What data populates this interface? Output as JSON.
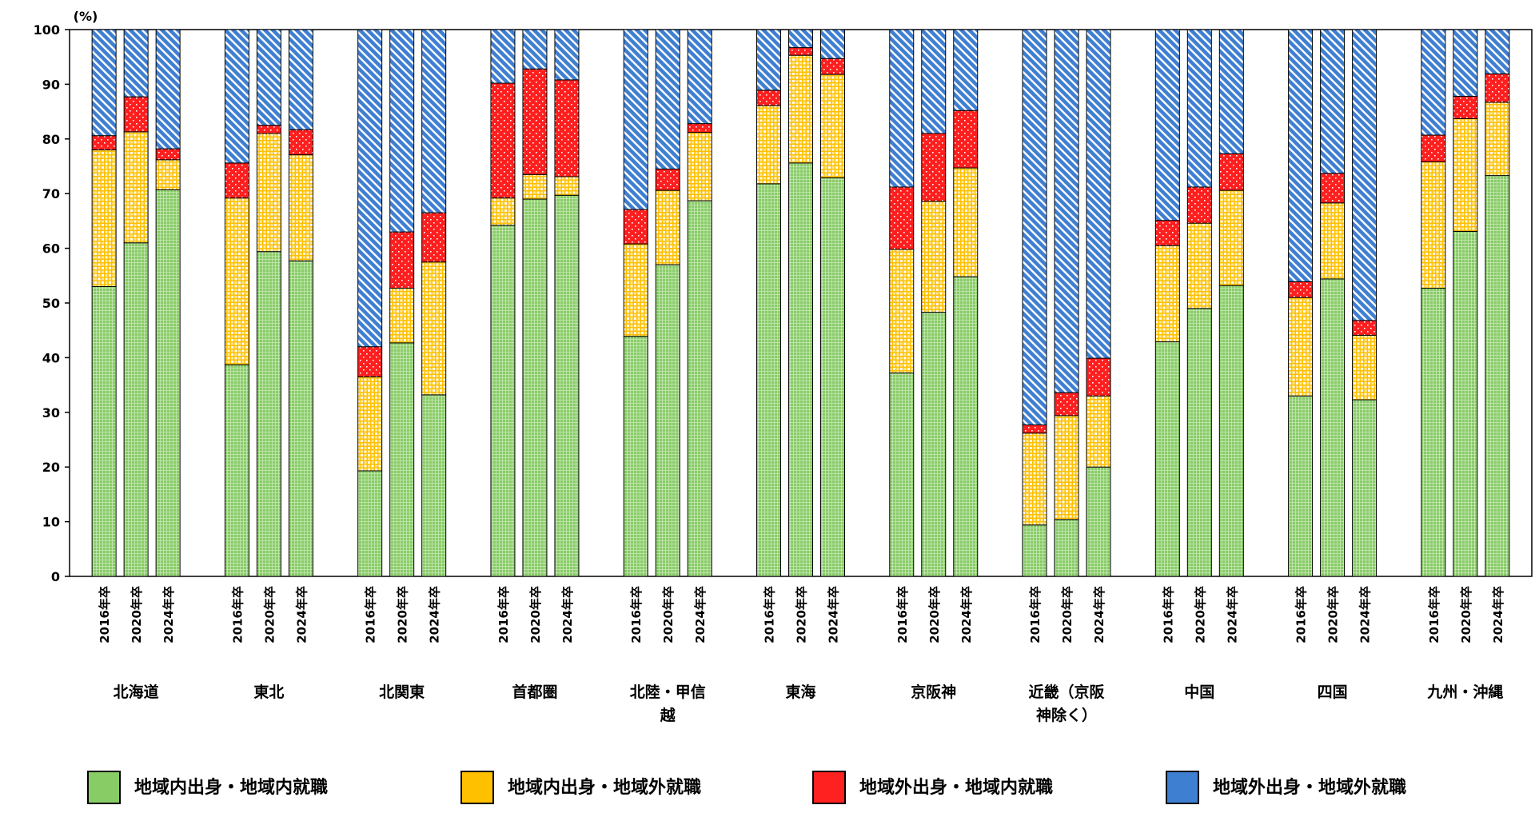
{
  "chart_data": {
    "type": "bar",
    "stacked": true,
    "ylabel": "(%)",
    "ylim": [
      0,
      100
    ],
    "yticks": [
      0,
      10,
      20,
      30,
      40,
      50,
      60,
      70,
      80,
      90,
      100
    ],
    "bar_labels": [
      "2016年卒",
      "2020年卒",
      "2024年卒"
    ],
    "groups": [
      {
        "name": "北海道",
        "name_lines": [
          "北海道"
        ]
      },
      {
        "name": "東北",
        "name_lines": [
          "東北"
        ]
      },
      {
        "name": "北関東",
        "name_lines": [
          "北関東"
        ]
      },
      {
        "name": "首都圏",
        "name_lines": [
          "首都圏"
        ]
      },
      {
        "name": "北陸・甲信越",
        "name_lines": [
          "北陸・甲信",
          "越"
        ]
      },
      {
        "name": "東海",
        "name_lines": [
          "東海"
        ]
      },
      {
        "name": "京阪神",
        "name_lines": [
          "京阪神"
        ]
      },
      {
        "name": "近畿（京阪神除く）",
        "name_lines": [
          "近畿（京阪",
          "神除く）"
        ]
      },
      {
        "name": "中国",
        "name_lines": [
          "中国"
        ]
      },
      {
        "name": "四国",
        "name_lines": [
          "四国"
        ]
      },
      {
        "name": "九州・沖縄",
        "name_lines": [
          "九州・沖縄"
        ]
      }
    ],
    "series": [
      {
        "name": "地域内出身・地域内就職",
        "color": "#88cc66",
        "pattern": "green",
        "values": [
          [
            53.0,
            61.0,
            70.7
          ],
          [
            38.7,
            59.4,
            57.7
          ],
          [
            19.3,
            42.7,
            33.2
          ],
          [
            64.2,
            69.0,
            69.7
          ],
          [
            43.9,
            57.0,
            68.7
          ],
          [
            71.8,
            75.6,
            72.9
          ],
          [
            37.2,
            48.3,
            54.8
          ],
          [
            9.4,
            10.4,
            20.0
          ],
          [
            42.9,
            49.0,
            53.2
          ],
          [
            33.0,
            54.4,
            32.3
          ],
          [
            52.7,
            63.1,
            73.3
          ]
        ]
      },
      {
        "name": "地域内出身・地域外就職",
        "color": "#ffc000",
        "pattern": "yellow",
        "values": [
          [
            25.0,
            20.3,
            5.5
          ],
          [
            30.5,
            21.6,
            19.4
          ],
          [
            17.2,
            10.0,
            24.3
          ],
          [
            5.0,
            4.5,
            3.4
          ],
          [
            16.9,
            13.6,
            12.5
          ],
          [
            14.3,
            19.7,
            18.9
          ],
          [
            22.6,
            20.3,
            19.9
          ],
          [
            16.8,
            19.0,
            13.0
          ],
          [
            17.6,
            15.6,
            17.4
          ],
          [
            18.0,
            13.9,
            11.8
          ],
          [
            23.1,
            20.6,
            13.4
          ]
        ]
      },
      {
        "name": "地域外出身・地域内就職",
        "color": "#ff2020",
        "pattern": "red",
        "values": [
          [
            2.6,
            6.4,
            2.0
          ],
          [
            6.4,
            1.5,
            4.6
          ],
          [
            5.5,
            10.3,
            9.0
          ],
          [
            21.0,
            19.3,
            17.7
          ],
          [
            6.3,
            3.9,
            1.6
          ],
          [
            2.8,
            1.4,
            2.9
          ],
          [
            11.4,
            12.4,
            10.5
          ],
          [
            1.5,
            4.2,
            6.9
          ],
          [
            4.6,
            6.6,
            6.7
          ],
          [
            2.9,
            5.4,
            2.7
          ],
          [
            4.9,
            4.1,
            5.2
          ]
        ]
      },
      {
        "name": "地域外出身・地域外就職",
        "color": "#3f7fd2",
        "pattern": "blue",
        "values": [
          [
            19.4,
            12.3,
            21.8
          ],
          [
            24.4,
            17.5,
            18.3
          ],
          [
            58.0,
            37.0,
            33.5
          ],
          [
            9.8,
            7.2,
            9.2
          ],
          [
            32.9,
            25.5,
            17.2
          ],
          [
            11.1,
            3.3,
            5.3
          ],
          [
            28.8,
            19.0,
            14.8
          ],
          [
            72.3,
            66.4,
            60.1
          ],
          [
            34.9,
            28.8,
            22.7
          ],
          [
            46.1,
            26.3,
            53.2
          ],
          [
            19.3,
            12.2,
            8.1
          ]
        ]
      }
    ],
    "legend": "bottom"
  }
}
